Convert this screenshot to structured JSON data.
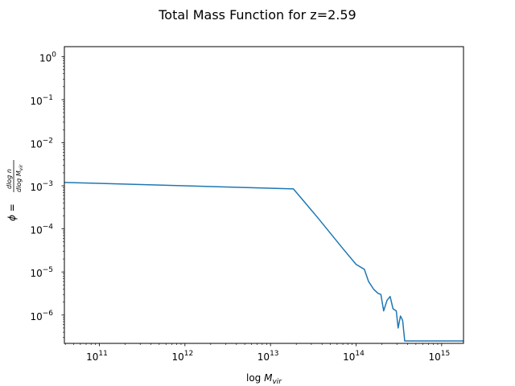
{
  "chart_data": {
    "type": "line",
    "title": "Total Mass Function for z=2.59",
    "xlabel": "log M_vir",
    "ylabel": "φ = dlog n / dlog M_vir",
    "x_scale": "log",
    "y_scale": "log",
    "xlim": [
      39000000000.0,
      1800000000000000.0
    ],
    "ylim": [
      2.2e-07,
      1.7
    ],
    "x_ticks": [
      {
        "value": 100000000000.0,
        "base": "10",
        "exp": "11"
      },
      {
        "value": 1000000000000.0,
        "base": "10",
        "exp": "12"
      },
      {
        "value": 10000000000000.0,
        "base": "10",
        "exp": "13"
      },
      {
        "value": 100000000000000.0,
        "base": "10",
        "exp": "14"
      },
      {
        "value": 1000000000000000.0,
        "base": "10",
        "exp": "15"
      }
    ],
    "y_ticks": [
      {
        "value": 1.0,
        "base": "10",
        "exp": "0"
      },
      {
        "value": 0.1,
        "base": "10",
        "exp": "−1"
      },
      {
        "value": 0.01,
        "base": "10",
        "exp": "−2"
      },
      {
        "value": 0.001,
        "base": "10",
        "exp": "−3"
      },
      {
        "value": 0.0001,
        "base": "10",
        "exp": "−4"
      },
      {
        "value": 1e-05,
        "base": "10",
        "exp": "−5"
      },
      {
        "value": 1e-06,
        "base": "10",
        "exp": "−6"
      }
    ],
    "grid": false,
    "series": [
      {
        "color": "#1f77b4",
        "points": [
          [
            39000000000.0,
            0.0012
          ],
          [
            18500000000000.0,
            0.00085
          ],
          [
            35000000000000.0,
            0.00019
          ],
          [
            70000000000000.0,
            3.5e-05
          ],
          [
            100000000000000.0,
            1.5e-05
          ],
          [
            125000000000000.0,
            1.15e-05
          ],
          [
            140000000000000.0,
            6e-06
          ],
          [
            160000000000000.0,
            4e-06
          ],
          [
            180000000000000.0,
            3.2e-06
          ],
          [
            195000000000000.0,
            3e-06
          ],
          [
            210000000000000.0,
            1.25e-06
          ],
          [
            230000000000000.0,
            2.2e-06
          ],
          [
            250000000000000.0,
            2.7e-06
          ],
          [
            270000000000000.0,
            1.4e-06
          ],
          [
            295000000000000.0,
            1.25e-06
          ],
          [
            310000000000000.0,
            5e-07
          ],
          [
            330000000000000.0,
            9.5e-07
          ],
          [
            350000000000000.0,
            7.5e-07
          ],
          [
            370000000000000.0,
            2.5e-07
          ],
          [
            1800000000000000.0,
            2.5e-07
          ]
        ]
      }
    ]
  }
}
